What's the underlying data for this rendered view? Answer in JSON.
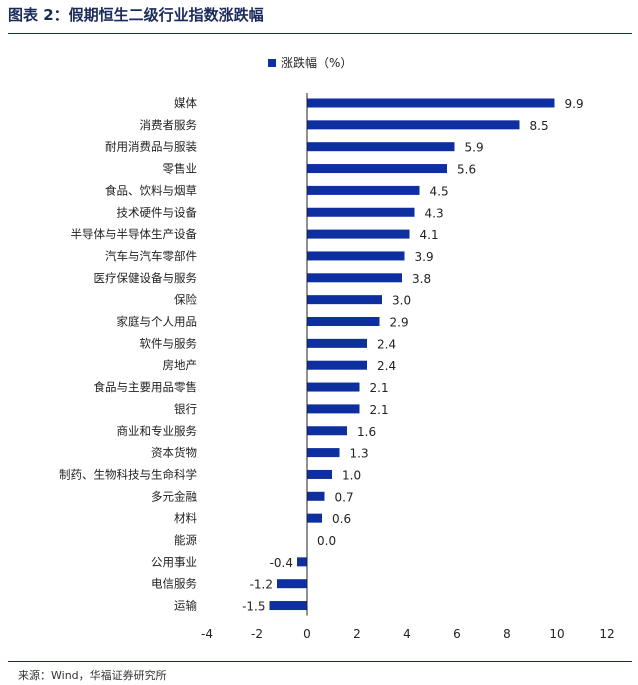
{
  "title": "图表 2：假期恒生二级行业指数涨跌幅",
  "source": {
    "label": "来源：",
    "text": "Wind，华福证券研究所"
  },
  "colors": {
    "bar": "#0d2fa0",
    "rule": "#1a2a5a",
    "axis": "#222222"
  },
  "chart_data": {
    "type": "bar",
    "orientation": "horizontal",
    "title": "图表 2：假期恒生二级行业指数涨跌幅",
    "xlabel": "",
    "ylabel": "",
    "xlim": [
      -4,
      12
    ],
    "xticks": [
      -4,
      -2,
      0,
      2,
      4,
      6,
      8,
      10,
      12
    ],
    "grid": false,
    "legend_position": "top-center",
    "categories": [
      "媒体",
      "消费者服务",
      "耐用消费品与服装",
      "零售业",
      "食品、饮料与烟草",
      "技术硬件与设备",
      "半导体与半导体生产设备",
      "汽车与汽车零部件",
      "医疗保健设备与服务",
      "保险",
      "家庭与个人用品",
      "软件与服务",
      "房地产",
      "食品与主要用品零售",
      "银行",
      "商业和专业服务",
      "资本货物",
      "制药、生物科技与生命科学",
      "多元金融",
      "材料",
      "能源",
      "公用事业",
      "电信服务",
      "运输"
    ],
    "series": [
      {
        "name": "涨跌幅（%）",
        "values": [
          9.9,
          8.5,
          5.9,
          5.6,
          4.5,
          4.3,
          4.1,
          3.9,
          3.8,
          3.0,
          2.9,
          2.4,
          2.4,
          2.1,
          2.1,
          1.6,
          1.3,
          1.0,
          0.7,
          0.6,
          0.0,
          -0.4,
          -1.2,
          -1.5
        ],
        "labels": [
          "9.9",
          "8.5",
          "5.9",
          "5.6",
          "4.5",
          "4.3",
          "4.1",
          "3.9",
          "3.8",
          "3.0",
          "2.9",
          "2.4",
          "2.4",
          "2.1",
          "2.1",
          "1.6",
          "1.3",
          "1.0",
          "0.7",
          "0.6",
          "0.0",
          "-0.4",
          "-1.2",
          "-1.5"
        ]
      }
    ]
  }
}
